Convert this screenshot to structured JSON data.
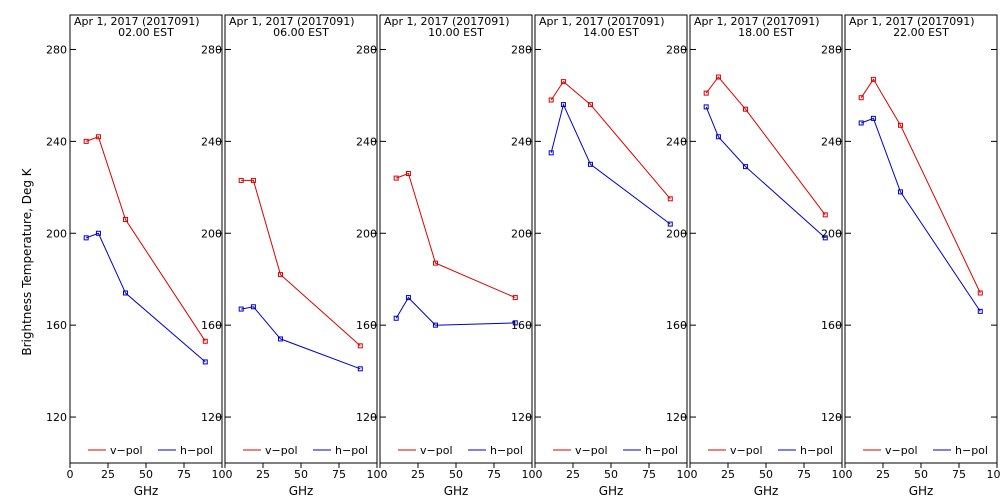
{
  "chart_data": {
    "type": "line",
    "ylabel": "Brightness Temperature, Deg K",
    "xlabel": "GHz",
    "xlim": [
      0,
      100
    ],
    "ylim": [
      100,
      295
    ],
    "x_ticks": [
      0,
      25,
      50,
      75,
      100
    ],
    "x_tick_labels": [
      "0",
      "25",
      "50",
      "75",
      "100"
    ],
    "y_ticks": [
      120,
      160,
      200,
      240,
      280
    ],
    "legend_placement": "bottom",
    "grid": false,
    "panels": [
      {
        "title": "Apr  1, 2017 (2017091)",
        "subtitle": "02.00 EST",
        "series": [
          {
            "name": "v−pol",
            "color": "#dd0000",
            "x": [
              10.65,
              18.7,
              36.5,
              89.0
            ],
            "y": [
              240,
              242,
              206,
              153
            ]
          },
          {
            "name": "h−pol",
            "color": "#0000cc",
            "x": [
              10.65,
              18.7,
              36.5,
              89.0
            ],
            "y": [
              198,
              200,
              174,
              144
            ]
          }
        ]
      },
      {
        "title": "Apr  1, 2017 (2017091)",
        "subtitle": "06.00 EST",
        "series": [
          {
            "name": "v−pol",
            "color": "#dd0000",
            "x": [
              10.65,
              18.7,
              36.5,
              89.0
            ],
            "y": [
              223,
              223,
              182,
              151
            ]
          },
          {
            "name": "h−pol",
            "color": "#0000cc",
            "x": [
              10.65,
              18.7,
              36.5,
              89.0
            ],
            "y": [
              167,
              168,
              154,
              141
            ]
          }
        ]
      },
      {
        "title": "Apr  1, 2017 (2017091)",
        "subtitle": "10.00 EST",
        "series": [
          {
            "name": "v−pol",
            "color": "#dd0000",
            "x": [
              10.65,
              18.7,
              36.5,
              89.0
            ],
            "y": [
              224,
              226,
              187,
              172
            ]
          },
          {
            "name": "h−pol",
            "color": "#0000cc",
            "x": [
              10.65,
              18.7,
              36.5,
              89.0
            ],
            "y": [
              163,
              172,
              160,
              161
            ]
          }
        ]
      },
      {
        "title": "Apr  1, 2017 (2017091)",
        "subtitle": "14.00 EST",
        "series": [
          {
            "name": "v−pol",
            "color": "#dd0000",
            "x": [
              10.65,
              18.7,
              36.5,
              89.0
            ],
            "y": [
              258,
              266,
              256,
              215
            ]
          },
          {
            "name": "h−pol",
            "color": "#0000cc",
            "x": [
              10.65,
              18.7,
              36.5,
              89.0
            ],
            "y": [
              235,
              256,
              230,
              204
            ]
          }
        ]
      },
      {
        "title": "Apr  1, 2017 (2017091)",
        "subtitle": "18.00 EST",
        "series": [
          {
            "name": "v−pol",
            "color": "#dd0000",
            "x": [
              10.65,
              18.7,
              36.5,
              89.0
            ],
            "y": [
              261,
              268,
              254,
              208
            ]
          },
          {
            "name": "h−pol",
            "color": "#0000cc",
            "x": [
              10.65,
              18.7,
              36.5,
              89.0
            ],
            "y": [
              255,
              242,
              229,
              198
            ]
          }
        ]
      },
      {
        "title": "Apr  1, 2017 (2017091)",
        "subtitle": "22.00 EST",
        "series": [
          {
            "name": "v−pol",
            "color": "#dd0000",
            "x": [
              10.65,
              18.7,
              36.5,
              89.0
            ],
            "y": [
              259,
              267,
              247,
              174
            ]
          },
          {
            "name": "h−pol",
            "color": "#0000cc",
            "x": [
              10.65,
              18.7,
              36.5,
              89.0
            ],
            "y": [
              248,
              250,
              218,
              166
            ]
          }
        ]
      }
    ]
  }
}
